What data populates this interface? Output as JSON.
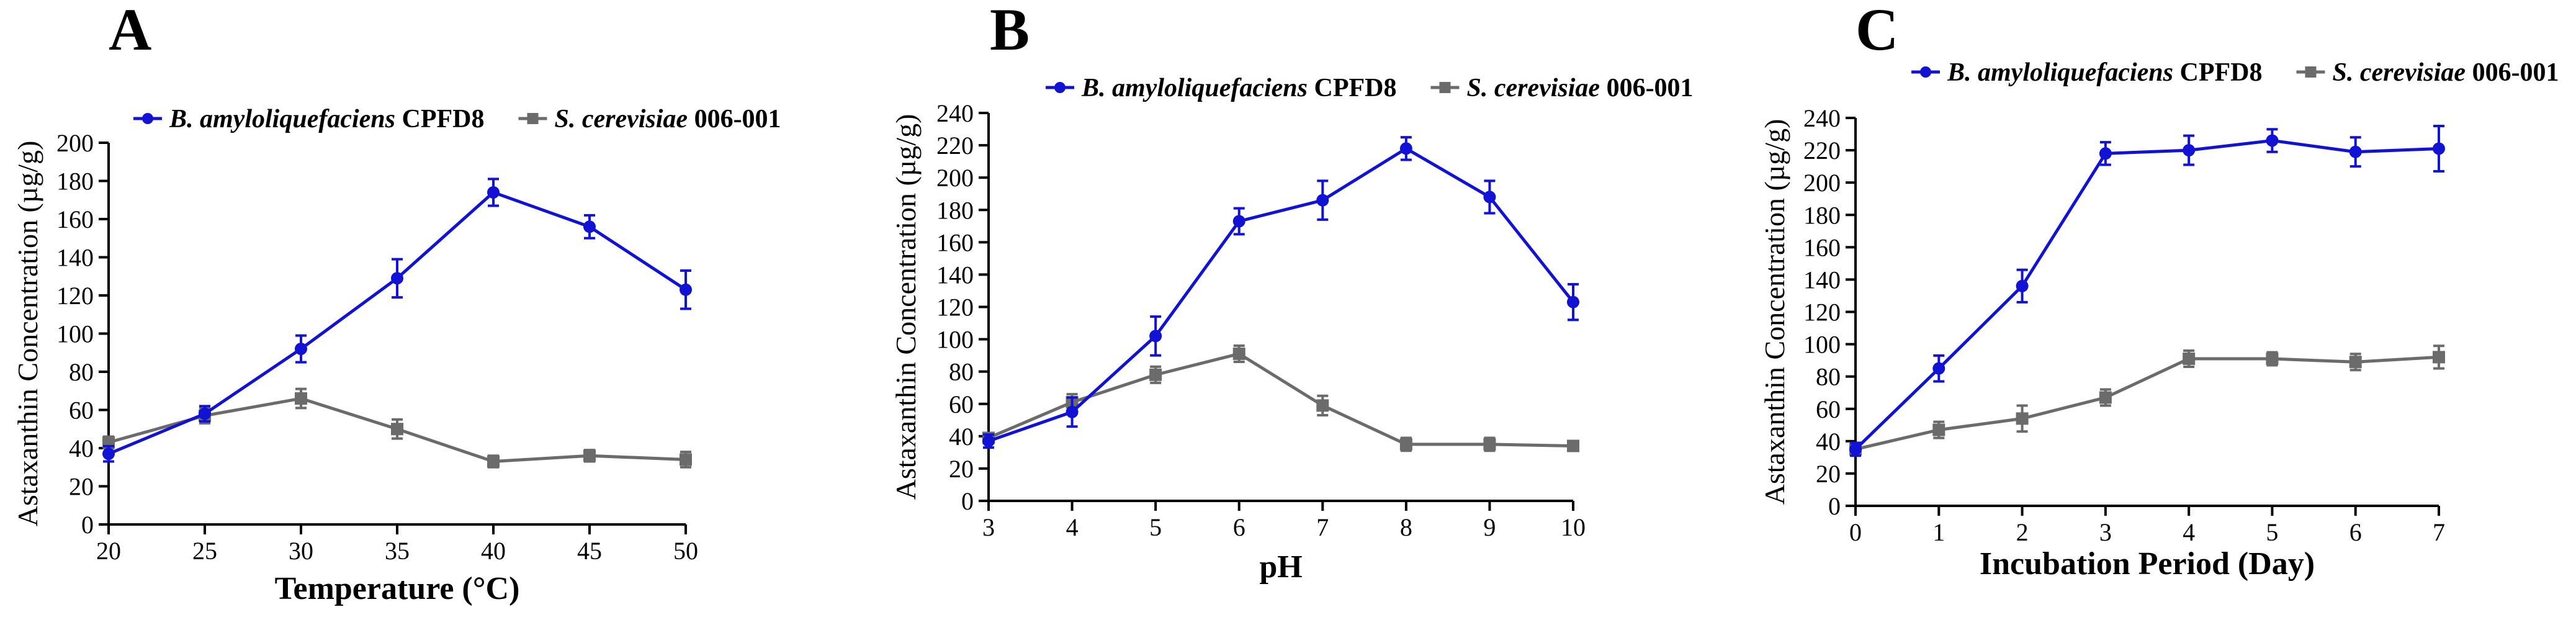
{
  "colors": {
    "series_a": "#1212d4",
    "series_b": "#6b6b6b",
    "axis": "#000000"
  },
  "chart_data": [
    {
      "type": "line",
      "panel_label": "A",
      "xlabel": "Temperature (°C)",
      "ylabel": "Astaxanthin Concentration (µg/g)",
      "x": [
        20,
        25,
        30,
        35,
        40,
        45,
        50
      ],
      "xlim": [
        20,
        50
      ],
      "xticks": [
        20,
        25,
        30,
        35,
        40,
        45,
        50
      ],
      "ylim": [
        0,
        200
      ],
      "yticks": [
        0,
        20,
        40,
        60,
        80,
        100,
        120,
        140,
        160,
        180,
        200
      ],
      "legend": {
        "placement": "top"
      },
      "series": [
        {
          "name": "B. amyloliquefaciens CPFD8",
          "name_italic": "B. amyloliquefaciens",
          "name_plain": "CPFD8",
          "marker": "circle",
          "values": [
            37,
            58,
            92,
            129,
            174,
            156,
            123
          ],
          "errors": [
            4,
            4,
            7,
            10,
            7,
            6,
            10
          ]
        },
        {
          "name": "S. cerevisiae 006-001",
          "name_italic": "S. cerevisiae",
          "name_plain": "006-001",
          "marker": "square",
          "values": [
            43,
            57,
            66,
            50,
            33,
            36,
            34
          ],
          "errors": [
            3,
            4,
            5,
            5,
            3,
            3,
            4
          ]
        }
      ]
    },
    {
      "type": "line",
      "panel_label": "B",
      "xlabel": "pH",
      "ylabel": "Astaxanthin Concentration (µg/g)",
      "x": [
        3,
        4,
        5,
        6,
        7,
        8,
        9,
        10
      ],
      "xlim": [
        3,
        10
      ],
      "xticks": [
        3,
        4,
        5,
        6,
        7,
        8,
        9,
        10
      ],
      "ylim": [
        0,
        240
      ],
      "yticks": [
        0,
        20,
        40,
        60,
        80,
        100,
        120,
        140,
        160,
        180,
        200,
        220,
        240
      ],
      "legend": {
        "placement": "top"
      },
      "series": [
        {
          "name": "B. amyloliquefaciens CPFD8",
          "name_italic": "B. amyloliquefaciens",
          "name_plain": "CPFD8",
          "marker": "circle",
          "values": [
            37,
            55,
            102,
            173,
            186,
            218,
            188,
            123
          ],
          "errors": [
            4,
            9,
            12,
            8,
            12,
            7,
            10,
            11
          ]
        },
        {
          "name": "S. cerevisiae 006-001",
          "name_italic": "S. cerevisiae",
          "name_plain": "006-001",
          "marker": "square",
          "values": [
            39,
            61,
            78,
            91,
            59,
            35,
            35,
            34
          ],
          "errors": [
            3,
            5,
            5,
            5,
            6,
            4,
            4,
            3
          ]
        }
      ]
    },
    {
      "type": "line",
      "panel_label": "C",
      "xlabel": "Incubation Period (Day)",
      "ylabel": "Astaxanthin Concentration (µg/g)",
      "x": [
        0,
        1,
        2,
        3,
        4,
        5,
        6,
        7
      ],
      "xlim": [
        0,
        7
      ],
      "xticks": [
        0,
        1,
        2,
        3,
        4,
        5,
        6,
        7
      ],
      "ylim": [
        0,
        240
      ],
      "yticks": [
        0,
        20,
        40,
        60,
        80,
        100,
        120,
        140,
        160,
        180,
        200,
        220,
        240
      ],
      "legend": {
        "placement": "top"
      },
      "series": [
        {
          "name": "B. amyloliquefaciens CPFD8",
          "name_italic": "B. amyloliquefaciens",
          "name_plain": "CPFD8",
          "marker": "circle",
          "values": [
            35,
            85,
            136,
            218,
            220,
            226,
            219,
            221
          ],
          "errors": [
            4,
            8,
            10,
            7,
            9,
            7,
            9,
            14
          ]
        },
        {
          "name": "S. cerevisiae 006-001",
          "name_italic": "S. cerevisiae",
          "name_plain": "006-001",
          "marker": "square",
          "values": [
            35,
            47,
            54,
            67,
            91,
            91,
            89,
            92
          ],
          "errors": [
            3,
            5,
            8,
            5,
            5,
            4,
            5,
            7
          ]
        }
      ]
    }
  ]
}
